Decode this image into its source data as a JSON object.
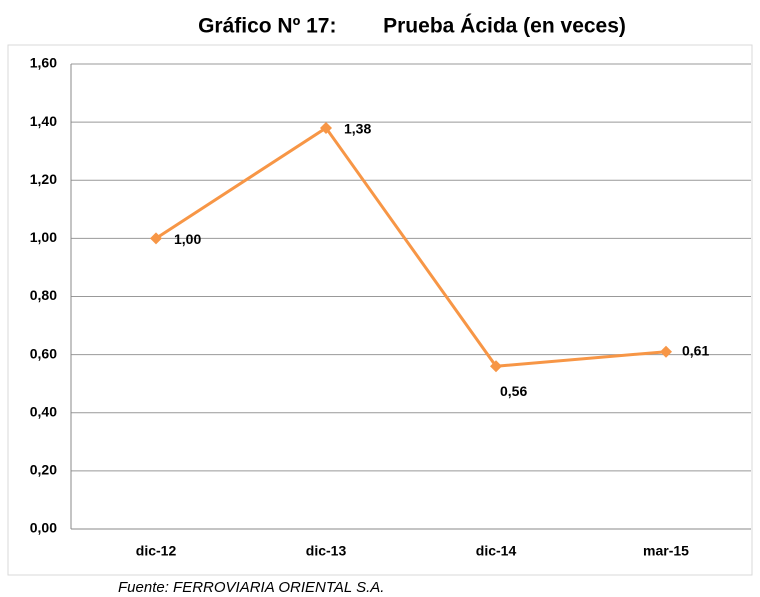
{
  "chart_data": {
    "type": "line",
    "title": "Gráfico Nº 17:        Prueba Ácida (en veces)",
    "source": "Fuente: FERROVIARIA ORIENTAL S.A.",
    "categories": [
      "dic-12",
      "dic-13",
      "dic-14",
      "mar-15"
    ],
    "series": [
      {
        "name": "Prueba Ácida",
        "color": "#f79646",
        "values": [
          1.0,
          1.38,
          0.56,
          0.61
        ],
        "value_labels": [
          "1,00",
          "1,38",
          "0,56",
          "0,61"
        ]
      }
    ],
    "ylim": [
      0,
      1.6
    ],
    "yticks": [
      {
        "value": 0,
        "label": "0,00"
      },
      {
        "value": 0.2,
        "label": "0,20"
      },
      {
        "value": 0.4,
        "label": "0,40"
      },
      {
        "value": 0.6,
        "label": "0,60"
      },
      {
        "value": 0.8,
        "label": "0,80"
      },
      {
        "value": 1.0,
        "label": "1,00"
      },
      {
        "value": 1.2,
        "label": "1,20"
      },
      {
        "value": 1.4,
        "label": "1,40"
      },
      {
        "value": 1.6,
        "label": "1,60"
      }
    ],
    "grid": true
  }
}
